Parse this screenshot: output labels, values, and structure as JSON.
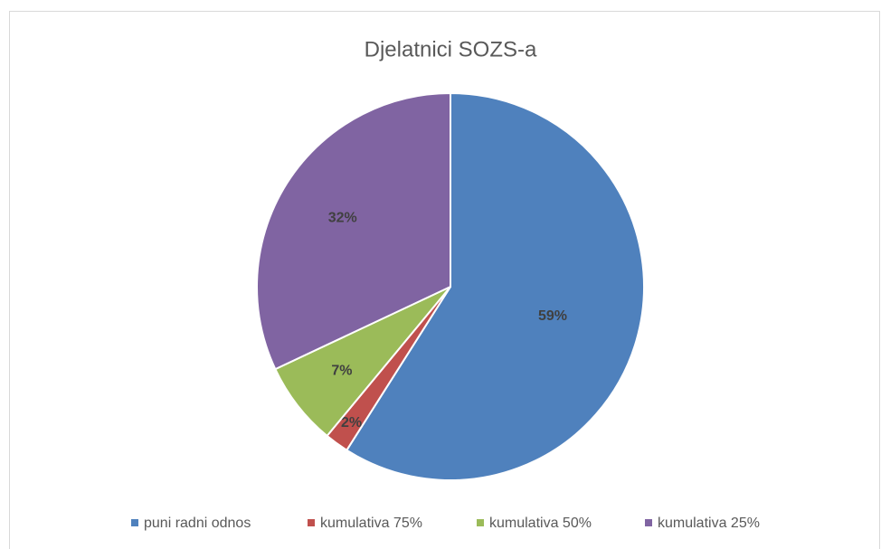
{
  "chart_data": {
    "type": "pie",
    "title": "Djelatnici SOZS-a",
    "categories": [
      "puni radni odnos",
      "kumulativa 75%",
      "kumulativa 50%",
      "kumulativa 25%"
    ],
    "values": [
      59,
      2,
      7,
      32
    ],
    "value_labels": [
      "59%",
      "2%",
      "7%",
      "32%"
    ],
    "colors": [
      "#4f81bd",
      "#c0504d",
      "#9bbb59",
      "#8064a2"
    ],
    "legend": "bottom"
  }
}
